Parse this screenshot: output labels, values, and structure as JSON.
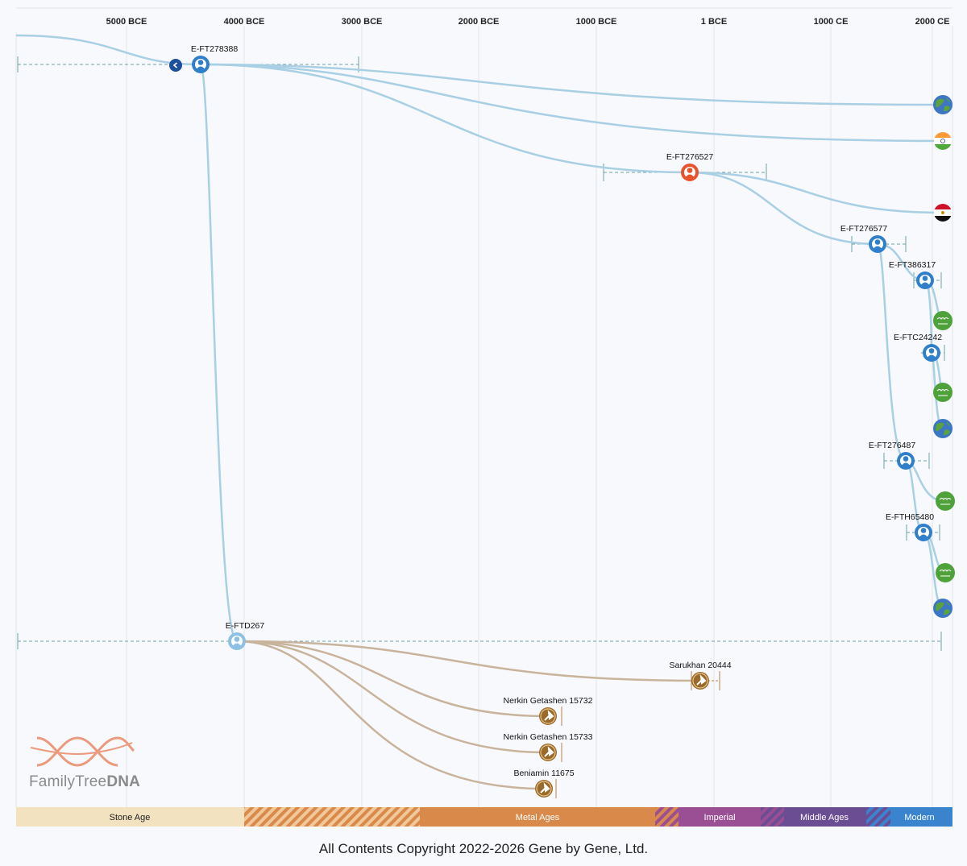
{
  "timeline": {
    "ticks": [
      "5000 BCE",
      "4000 BCE",
      "3000 BCE",
      "2000 BCE",
      "1000 BCE",
      "1 BCE",
      "1000 CE",
      "2000 CE"
    ]
  },
  "colors": {
    "branch": "#a8cfe3",
    "ancient_branch": "#c8b39c",
    "node_blue": "#2f7fcb",
    "node_red": "#e8532c",
    "node_light": "#8cc0e6",
    "ancient_node": "#9a6a2a"
  },
  "nodes": [
    {
      "id": "E-FT278388",
      "type": "blue"
    },
    {
      "id": "E-FT276527",
      "type": "red"
    },
    {
      "id": "E-FT276577",
      "type": "blue"
    },
    {
      "id": "E-FT386317",
      "type": "blue"
    },
    {
      "id": "E-FTC24242",
      "type": "blue"
    },
    {
      "id": "E-FT276487",
      "type": "blue"
    },
    {
      "id": "E-FTH65480",
      "type": "blue"
    },
    {
      "id": "E-FTD267",
      "type": "light"
    }
  ],
  "ancient_samples": [
    {
      "label": "Sarukhan 20444"
    },
    {
      "label": "Nerkin Getashen 15732"
    },
    {
      "label": "Nerkin Getashen 15733"
    },
    {
      "label": "Beniamin 11675"
    }
  ],
  "country_markers": [
    "globe-icon",
    "india-flag-icon",
    "egypt-flag-icon",
    "saudi-flag-icon",
    "saudi-flag-icon",
    "globe-icon",
    "saudi-flag-icon",
    "saudi-flag-icon",
    "globe-icon"
  ],
  "ages": [
    {
      "label": "Stone Age",
      "color": "#f2e2bf"
    },
    {
      "label": "Metal Ages",
      "color": "#d98a4a"
    },
    {
      "label": "Imperial",
      "color": "#9a4f94"
    },
    {
      "label": "Middle Ages",
      "color": "#6a4d92"
    },
    {
      "label": "Modern",
      "color": "#3a84cf"
    }
  ],
  "logo": {
    "text_a": "FamilyTree",
    "text_b": "DNA"
  },
  "copyright": "All Contents Copyright 2022-2026 Gene by Gene, Ltd."
}
